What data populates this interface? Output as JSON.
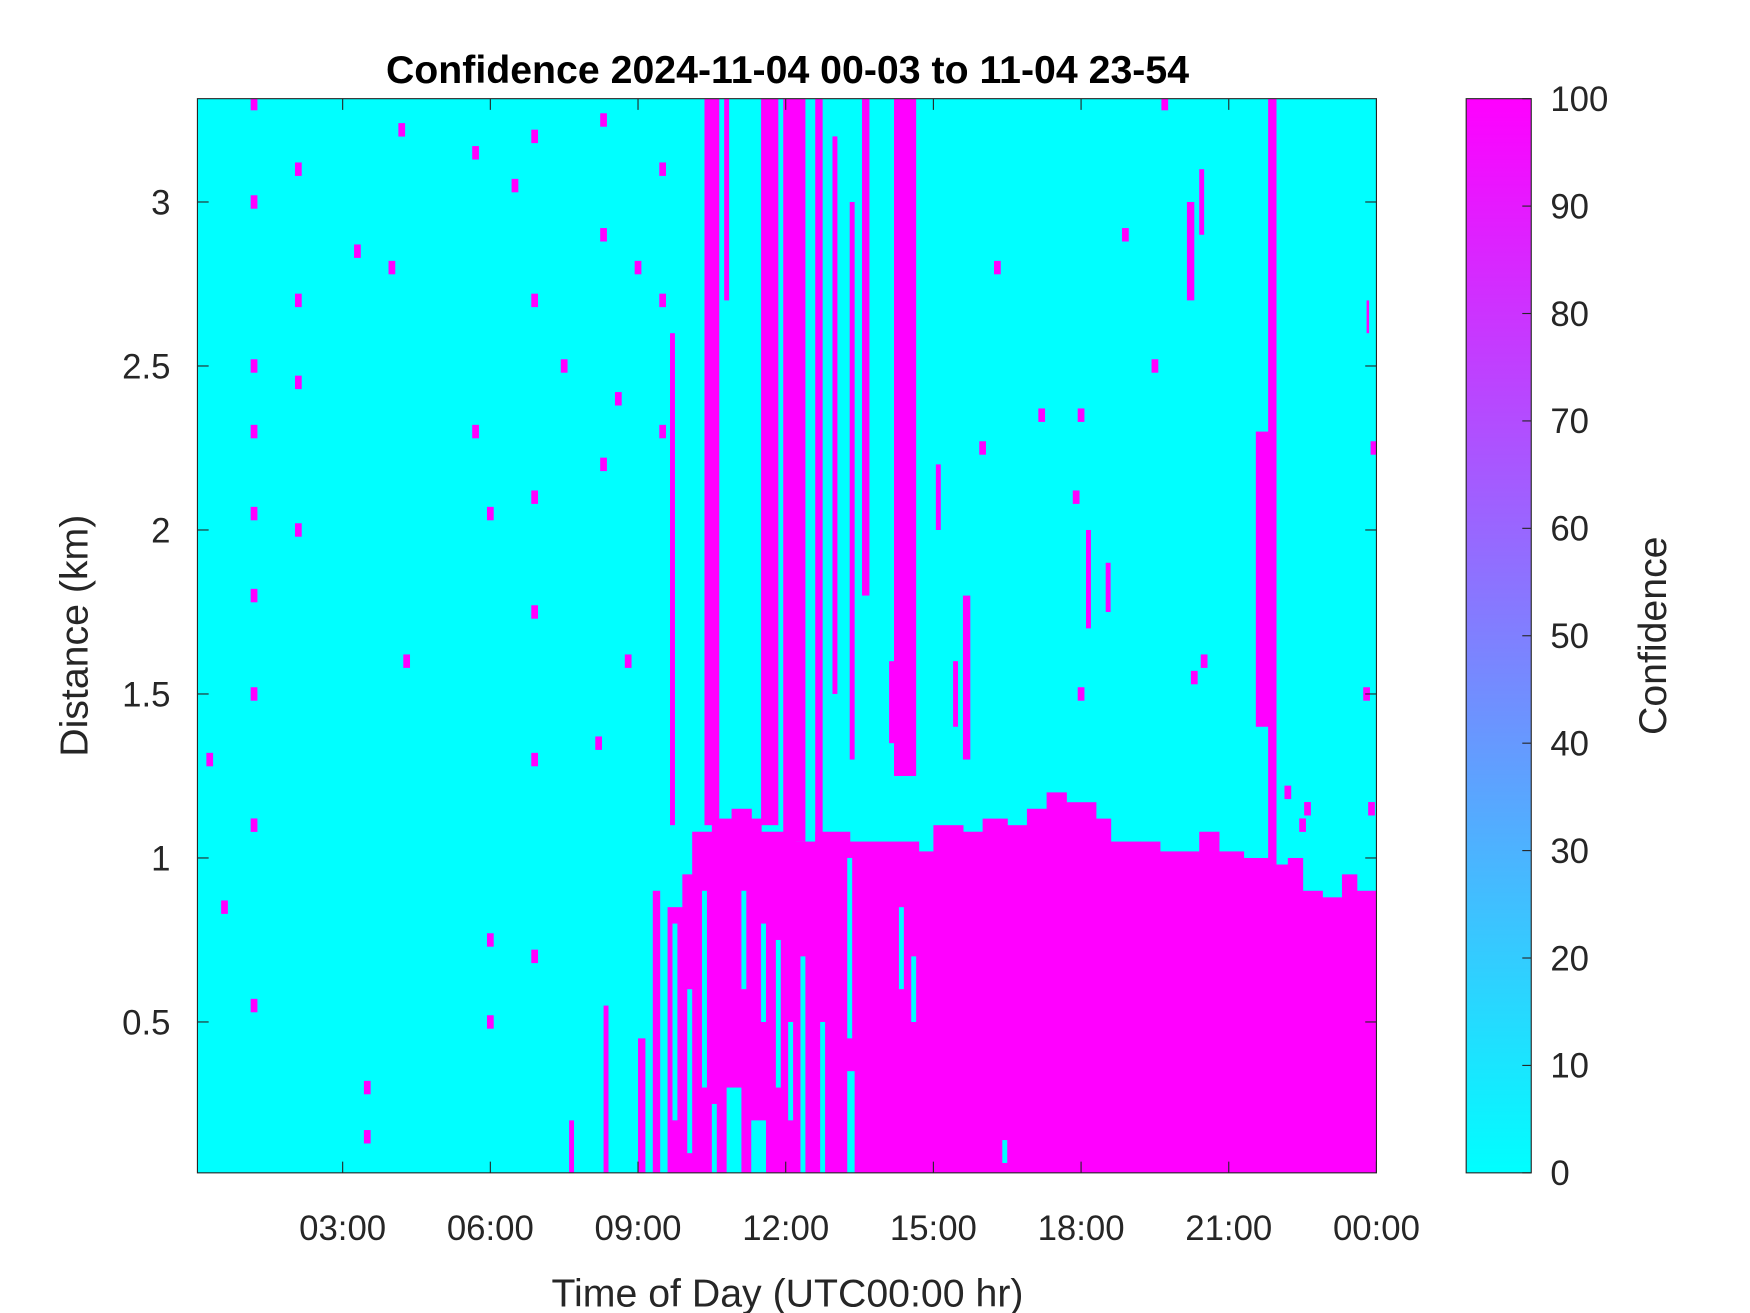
{
  "chart_data": {
    "type": "heatmap",
    "title": "Confidence 2024-11-04 00-03 to 11-04 23-54",
    "xlabel": "Time of Day (UTC00:00 hr)",
    "ylabel": "Distance (km)",
    "xlim_hours": [
      0.05,
      24.0
    ],
    "ylim": [
      0.04,
      3.315
    ],
    "x_ticks": [
      3,
      6,
      9,
      12,
      15,
      18,
      21,
      24
    ],
    "x_tick_labels": [
      "03:00",
      "06:00",
      "09:00",
      "12:00",
      "15:00",
      "18:00",
      "21:00",
      "00:00"
    ],
    "y_ticks": [
      0.5,
      1,
      1.5,
      2,
      2.5,
      3
    ],
    "y_tick_labels": [
      "0.5",
      "1",
      "1.5",
      "2",
      "2.5",
      "3"
    ],
    "colorbar": {
      "label": "Confidence",
      "range": [
        0,
        100
      ],
      "ticks": [
        0,
        10,
        20,
        30,
        40,
        50,
        60,
        70,
        80,
        90,
        100
      ],
      "tick_labels": [
        "0",
        "10",
        "20",
        "30",
        "40",
        "50",
        "60",
        "70",
        "80",
        "90",
        "100"
      ],
      "colormap": "cool",
      "low_color": "#00ffff",
      "high_color": "#ff00ff"
    },
    "background_value": 0,
    "high_confidence_layer_top_km": [
      [
        9.6,
        0.85
      ],
      [
        9.9,
        0.95
      ],
      [
        10.1,
        1.08
      ],
      [
        10.5,
        1.12
      ],
      [
        10.9,
        1.15
      ],
      [
        11.3,
        1.12
      ],
      [
        11.5,
        1.08
      ],
      [
        12.2,
        1.05
      ],
      [
        12.6,
        1.08
      ],
      [
        13.3,
        1.05
      ],
      [
        14.3,
        1.05
      ],
      [
        14.7,
        1.02
      ],
      [
        15.0,
        1.1
      ],
      [
        15.6,
        1.08
      ],
      [
        16.0,
        1.12
      ],
      [
        16.5,
        1.1
      ],
      [
        16.9,
        1.15
      ],
      [
        17.3,
        1.2
      ],
      [
        17.7,
        1.17
      ],
      [
        18.3,
        1.12
      ],
      [
        18.6,
        1.05
      ],
      [
        19.2,
        1.05
      ],
      [
        19.6,
        1.02
      ],
      [
        20.0,
        1.02
      ],
      [
        20.4,
        1.08
      ],
      [
        20.8,
        1.02
      ],
      [
        21.3,
        1.0
      ],
      [
        21.8,
        0.98
      ],
      [
        22.2,
        1.0
      ],
      [
        22.5,
        0.9
      ],
      [
        22.9,
        0.88
      ],
      [
        23.3,
        0.95
      ],
      [
        23.6,
        0.9
      ],
      [
        24.0,
        0.9
      ]
    ],
    "high_confidence_streaks": [
      [
        9.0,
        9.15,
        0.04,
        0.45
      ],
      [
        8.3,
        8.4,
        0.04,
        0.55
      ],
      [
        7.6,
        7.7,
        0.04,
        0.2
      ],
      [
        9.3,
        9.45,
        0.04,
        0.9
      ],
      [
        9.65,
        9.75,
        1.1,
        2.6
      ],
      [
        9.8,
        9.9,
        0.04,
        0.75
      ],
      [
        10.35,
        10.65,
        1.1,
        3.315
      ],
      [
        10.75,
        10.85,
        2.7,
        3.315
      ],
      [
        11.5,
        11.85,
        1.1,
        3.315
      ],
      [
        11.95,
        12.4,
        1.05,
        3.315
      ],
      [
        12.6,
        12.75,
        1.0,
        3.315
      ],
      [
        12.95,
        13.05,
        1.5,
        3.2
      ],
      [
        13.3,
        13.4,
        1.3,
        3.0
      ],
      [
        13.55,
        13.7,
        1.8,
        3.315
      ],
      [
        14.2,
        14.65,
        1.25,
        3.315
      ],
      [
        14.1,
        14.3,
        1.35,
        1.6
      ],
      [
        15.6,
        15.75,
        1.3,
        1.8
      ],
      [
        15.4,
        15.5,
        1.4,
        1.6
      ],
      [
        15.05,
        15.15,
        2.0,
        2.2
      ],
      [
        18.1,
        18.2,
        1.7,
        2.0
      ],
      [
        18.5,
        18.6,
        1.75,
        1.9
      ],
      [
        20.15,
        20.3,
        2.7,
        3.0
      ],
      [
        20.4,
        20.5,
        2.9,
        3.1
      ],
      [
        21.55,
        21.95,
        1.4,
        2.3
      ],
      [
        21.8,
        21.97,
        0.9,
        3.315
      ],
      [
        23.8,
        23.85,
        2.6,
        2.7
      ]
    ],
    "low_confidence_gaps": [
      [
        9.7,
        9.8,
        0.2,
        0.8
      ],
      [
        10.0,
        10.1,
        0.1,
        0.6
      ],
      [
        10.3,
        10.4,
        0.3,
        0.9
      ],
      [
        10.5,
        10.6,
        0.04,
        0.25
      ],
      [
        10.8,
        11.1,
        0.04,
        0.3
      ],
      [
        11.1,
        11.2,
        0.6,
        0.9
      ],
      [
        11.3,
        11.6,
        0.04,
        0.2
      ],
      [
        11.5,
        11.6,
        0.5,
        0.8
      ],
      [
        11.8,
        11.9,
        0.3,
        0.75
      ],
      [
        12.05,
        12.15,
        0.2,
        0.5
      ],
      [
        12.3,
        12.4,
        0.04,
        0.7
      ],
      [
        12.7,
        12.8,
        0.04,
        0.5
      ],
      [
        13.25,
        13.4,
        0.04,
        0.35
      ],
      [
        13.25,
        13.35,
        0.45,
        1.0
      ],
      [
        14.3,
        14.4,
        0.6,
        0.85
      ],
      [
        14.55,
        14.65,
        0.5,
        0.7
      ],
      [
        16.4,
        16.5,
        0.07,
        0.14
      ]
    ],
    "high_confidence_points": [
      [
        1.2,
        3.3
      ],
      [
        1.2,
        3.0
      ],
      [
        1.2,
        2.5
      ],
      [
        1.2,
        2.3
      ],
      [
        1.2,
        2.05
      ],
      [
        1.2,
        1.8
      ],
      [
        1.2,
        1.5
      ],
      [
        1.2,
        1.1
      ],
      [
        1.2,
        0.55
      ],
      [
        2.1,
        3.1
      ],
      [
        2.1,
        2.7
      ],
      [
        2.1,
        2.45
      ],
      [
        2.1,
        2.0
      ],
      [
        3.5,
        0.3
      ],
      [
        3.5,
        0.15
      ],
      [
        3.3,
        2.85
      ],
      [
        4.2,
        3.22
      ],
      [
        4.0,
        2.8
      ],
      [
        4.3,
        1.6
      ],
      [
        0.3,
        1.3
      ],
      [
        0.6,
        0.85
      ],
      [
        5.7,
        2.3
      ],
      [
        5.7,
        3.15
      ],
      [
        6.0,
        2.05
      ],
      [
        6.0,
        0.5
      ],
      [
        6.0,
        0.75
      ],
      [
        6.5,
        3.05
      ],
      [
        6.9,
        3.2
      ],
      [
        6.9,
        2.7
      ],
      [
        6.9,
        2.1
      ],
      [
        6.9,
        1.75
      ],
      [
        6.9,
        1.3
      ],
      [
        6.9,
        0.7
      ],
      [
        7.5,
        2.5
      ],
      [
        8.3,
        3.25
      ],
      [
        8.3,
        2.9
      ],
      [
        8.3,
        2.2
      ],
      [
        8.2,
        1.35
      ],
      [
        8.6,
        2.4
      ],
      [
        8.8,
        1.6
      ],
      [
        9.0,
        2.8
      ],
      [
        9.5,
        3.1
      ],
      [
        9.5,
        2.7
      ],
      [
        9.5,
        2.3
      ],
      [
        16.3,
        2.8
      ],
      [
        16.0,
        2.25
      ],
      [
        17.2,
        2.35
      ],
      [
        17.9,
        2.1
      ],
      [
        18.0,
        2.35
      ],
      [
        18.0,
        1.5
      ],
      [
        18.9,
        2.9
      ],
      [
        19.5,
        2.5
      ],
      [
        19.7,
        3.3
      ],
      [
        20.3,
        1.55
      ],
      [
        20.5,
        1.6
      ],
      [
        22.2,
        1.2
      ],
      [
        22.5,
        1.1
      ],
      [
        22.6,
        1.15
      ],
      [
        23.8,
        1.5
      ],
      [
        23.9,
        1.15
      ],
      [
        23.95,
        2.25
      ]
    ]
  }
}
